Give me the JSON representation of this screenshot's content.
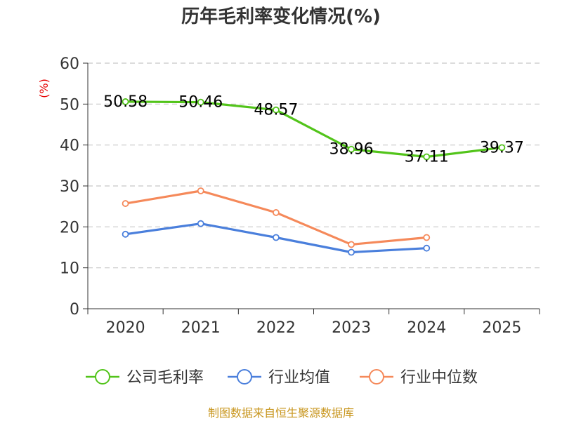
{
  "chart_data": {
    "type": "line",
    "title": "历年毛利率变化情况(%)",
    "ylabel": "(%)",
    "xlabel": "",
    "categories": [
      "2020",
      "2021",
      "2022",
      "2023",
      "2024",
      "2025"
    ],
    "ylim": [
      0,
      60
    ],
    "yticks": [
      0,
      10,
      20,
      30,
      40,
      50,
      60
    ],
    "grid": true,
    "legend_position": "bottom",
    "series": [
      {
        "name": "公司毛利率",
        "color": "#52c41a",
        "values": [
          50.58,
          50.46,
          48.57,
          38.96,
          37.11,
          39.37
        ],
        "labels": [
          "50.58",
          "50.46",
          "48.57",
          "38.96",
          "37.11",
          "39.37"
        ]
      },
      {
        "name": "行业均值",
        "color": "#4a7fdc",
        "values": [
          18.2,
          20.8,
          17.4,
          13.8,
          14.8,
          null
        ]
      },
      {
        "name": "行业中位数",
        "color": "#f5895a",
        "values": [
          25.7,
          28.8,
          23.5,
          15.7,
          17.4,
          null
        ]
      }
    ],
    "source": "制图数据来自恒生聚源数据库"
  }
}
